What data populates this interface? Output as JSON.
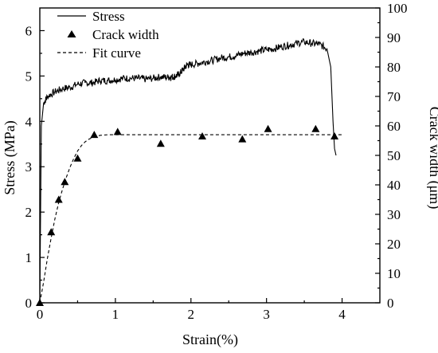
{
  "chart_data": {
    "type": "line",
    "xlabel": "Strain(%)",
    "ylabel": "Stress (MPa)",
    "y2label": "Crack width (μm)",
    "xlim": [
      0,
      4.5
    ],
    "ylim": [
      0,
      6.5
    ],
    "y2lim": [
      0,
      100
    ],
    "xticks": [
      "0",
      "1",
      "2",
      "3",
      "4"
    ],
    "yticks": [
      "0",
      "1",
      "2",
      "3",
      "4",
      "5",
      "6"
    ],
    "y2ticks": [
      "0",
      "10",
      "20",
      "30",
      "40",
      "50",
      "60",
      "70",
      "80",
      "90",
      "100"
    ],
    "legend_position": "top-left",
    "grid": false,
    "series": [
      {
        "name": "Stress",
        "axis": "left",
        "style": "solid",
        "x": [
          0,
          0.02,
          0.05,
          0.1,
          0.2,
          0.3,
          0.4,
          0.5,
          0.6,
          0.7,
          0.8,
          0.9,
          1.0,
          1.1,
          1.2,
          1.3,
          1.4,
          1.5,
          1.6,
          1.7,
          1.75,
          1.8,
          1.85,
          1.9,
          1.95,
          2.0,
          2.1,
          2.2,
          2.3,
          2.4,
          2.5,
          2.6,
          2.7,
          2.8,
          2.9,
          3.0,
          3.1,
          3.2,
          3.3,
          3.4,
          3.5,
          3.6,
          3.7,
          3.8,
          3.85,
          3.88,
          3.9,
          3.92
        ],
        "y": [
          0,
          3.9,
          4.4,
          4.55,
          4.65,
          4.72,
          4.75,
          4.82,
          4.85,
          4.85,
          4.9,
          4.9,
          4.92,
          4.95,
          4.95,
          4.95,
          4.93,
          4.95,
          4.98,
          4.97,
          4.98,
          5.0,
          5.05,
          5.15,
          5.25,
          5.25,
          5.28,
          5.32,
          5.35,
          5.4,
          5.42,
          5.45,
          5.5,
          5.52,
          5.55,
          5.58,
          5.6,
          5.65,
          5.68,
          5.72,
          5.75,
          5.72,
          5.7,
          5.6,
          5.2,
          4.0,
          3.4,
          3.25
        ]
      },
      {
        "name": "Crack width",
        "axis": "right",
        "style": "markers",
        "marker": "triangle",
        "x": [
          0,
          0.15,
          0.25,
          0.33,
          0.5,
          0.72,
          1.03,
          1.6,
          2.15,
          2.68,
          3.02,
          3.65,
          3.9
        ],
        "y": [
          0,
          24,
          35,
          41,
          49,
          57,
          58,
          54,
          56.5,
          55.5,
          59,
          59,
          56.5
        ]
      },
      {
        "name": "Fit curve",
        "axis": "right",
        "style": "dashed",
        "x": [
          0,
          0.05,
          0.1,
          0.15,
          0.2,
          0.25,
          0.3,
          0.35,
          0.4,
          0.45,
          0.5,
          0.55,
          0.6,
          0.65,
          0.7,
          0.75,
          0.8,
          0.9,
          1.0,
          1.5,
          2.0,
          2.5,
          3.0,
          3.5,
          4.0
        ],
        "y": [
          0,
          7,
          15,
          22,
          28.5,
          34,
          38.5,
          42.5,
          46,
          49,
          51.5,
          53.3,
          54.6,
          55.5,
          56.1,
          56.5,
          56.8,
          57,
          57,
          57,
          57,
          57,
          57,
          57,
          57
        ]
      }
    ]
  }
}
